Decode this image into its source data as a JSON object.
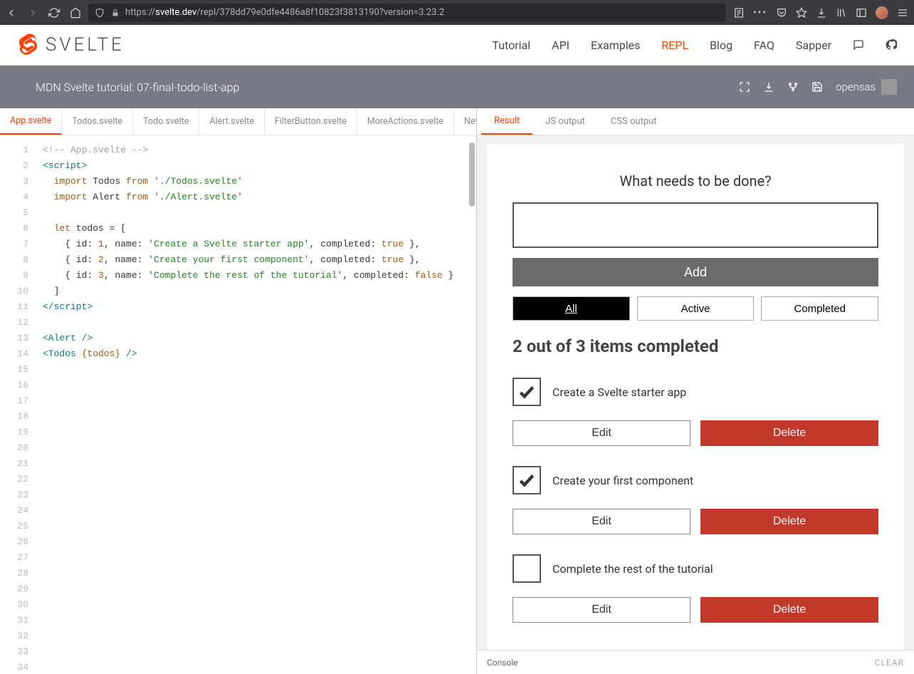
{
  "browser": {
    "url_prefix": "https://",
    "url_host": "svelte.dev",
    "url_path": "/repl/378dd79e0dfe4486a8f10823f3813190?version=3.23.2"
  },
  "siteNav": {
    "brand": "SVELTE",
    "items": [
      "Tutorial",
      "API",
      "Examples",
      "REPL",
      "Blog",
      "FAQ",
      "Sapper"
    ],
    "activeIndex": 3
  },
  "replBar": {
    "title": "MDN Svelte tutorial: 07-final-todo-list-app",
    "user": "opensas"
  },
  "fileTabs": {
    "items": [
      "App.svelte",
      "Todos.svelte",
      "Todo.svelte",
      "Alert.svelte",
      "FilterButton.svelte",
      "MoreActions.svelte",
      "NewT"
    ],
    "activeIndex": 0
  },
  "editor": {
    "lineCount": 34,
    "code": {
      "l1": "<!-- App.svelte -->",
      "l2a": "<script>",
      "l2b": "",
      "l3a": "  import",
      "l3b": " Todos ",
      "l3c": "from",
      "l3d": " './Todos.svelte'",
      "l4a": "  import",
      "l4b": " Alert ",
      "l4c": "from",
      "l4d": " './Alert.svelte'",
      "l6a": "  let",
      "l6b": " todos = [",
      "l7a": "    { id: ",
      "l7b": "1",
      "l7c": ", name: ",
      "l7d": "'Create a Svelte starter app'",
      "l7e": ", completed: ",
      "l7f": "true",
      "l7g": " },",
      "l8a": "    { id: ",
      "l8b": "2",
      "l8c": ", name: ",
      "l8d": "'Create your first component'",
      "l8e": ", completed: ",
      "l8f": "true",
      "l8g": " },",
      "l9a": "    { id: ",
      "l9b": "3",
      "l9c": ", name: ",
      "l9d": "'Complete the rest of the tutorial'",
      "l9e": ", completed: ",
      "l9f": "false",
      "l9g": " }",
      "l10": "  ]",
      "l11": "</script>",
      "l13": "<Alert />",
      "l14a": "<Todos ",
      "l14b": "{todos}",
      "l14c": " />"
    }
  },
  "outTabs": {
    "items": [
      "Result",
      "JS output",
      "CSS output"
    ],
    "activeIndex": 0
  },
  "preview": {
    "prompt": "What needs to be done?",
    "addLabel": "Add",
    "filters": [
      "All",
      "Active",
      "Completed"
    ],
    "activeFilter": 0,
    "status": "2 out of 3 items completed",
    "editLabel": "Edit",
    "deleteLabel": "Delete",
    "todos": [
      {
        "label": "Create a Svelte starter app",
        "checked": true
      },
      {
        "label": "Create your first component",
        "checked": true
      },
      {
        "label": "Complete the rest of the tutorial",
        "checked": false
      }
    ]
  },
  "console": {
    "label": "Console",
    "clear": "CLEAR"
  },
  "colors": {
    "accent": "#ff3e00",
    "delete": "#c0392b",
    "toolbar": "#7a7a85"
  }
}
